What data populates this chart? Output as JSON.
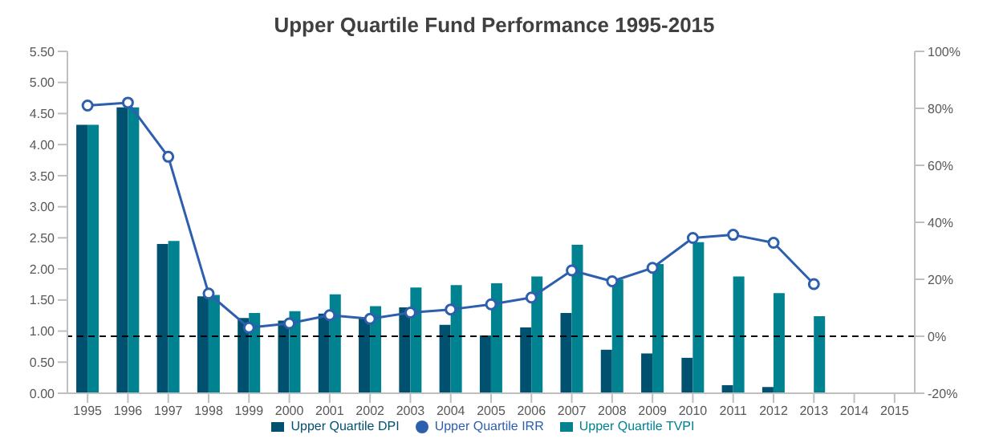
{
  "chart_data": {
    "type": "bar",
    "title": "Upper Quartile Fund Performance 1995-2015",
    "categories": [
      "1995",
      "1996",
      "1997",
      "1998",
      "1999",
      "2000",
      "2001",
      "2002",
      "2003",
      "2004",
      "2005",
      "2006",
      "2007",
      "2008",
      "2009",
      "2010",
      "2011",
      "2012",
      "2013",
      "2014",
      "2015"
    ],
    "series": [
      {
        "name": "Upper Quartile DPI",
        "color": "#005070",
        "values": [
          4.32,
          4.6,
          2.4,
          1.56,
          1.21,
          1.17,
          1.28,
          1.21,
          1.38,
          1.1,
          0.93,
          1.06,
          1.29,
          0.7,
          0.64,
          0.57,
          0.13,
          0.1,
          null,
          null,
          null
        ]
      },
      {
        "name": "Upper Quartile TVPI",
        "color": "#008290",
        "values": [
          4.32,
          4.6,
          2.45,
          1.58,
          1.29,
          1.32,
          1.59,
          1.4,
          1.7,
          1.74,
          1.77,
          1.88,
          2.39,
          1.83,
          2.08,
          2.43,
          1.88,
          1.61,
          1.24,
          null,
          null
        ]
      },
      {
        "name": "Upper Quartile IRR",
        "type": "line",
        "axis": "y2",
        "color": "#2e5fae",
        "values": [
          81,
          82,
          63,
          15,
          3,
          4.5,
          7.4,
          6.1,
          8.3,
          9.4,
          11.2,
          13.6,
          23.1,
          19.3,
          24,
          34.5,
          35.6,
          32.8,
          18.3,
          null,
          null
        ]
      }
    ],
    "ylim": [
      0,
      5.5
    ],
    "yticks": [
      {
        "value": 0,
        "label": "0.00"
      },
      {
        "value": 0.5,
        "label": "0.50"
      },
      {
        "value": 1,
        "label": "1.00"
      },
      {
        "value": 1.5,
        "label": "1.50"
      },
      {
        "value": 2,
        "label": "2.00"
      },
      {
        "value": 2.5,
        "label": "2.50"
      },
      {
        "value": 3,
        "label": "3.00"
      },
      {
        "value": 3.5,
        "label": "3.50"
      },
      {
        "value": 4,
        "label": "4.00"
      },
      {
        "value": 4.5,
        "label": "4.50"
      },
      {
        "value": 5,
        "label": "5.00"
      },
      {
        "value": 5.5,
        "label": "5.50"
      }
    ],
    "y2lim": [
      -20,
      100
    ],
    "y2ticks": [
      {
        "value": -20,
        "label": "-20%"
      },
      {
        "value": 0,
        "label": "0%"
      },
      {
        "value": 20,
        "label": "20%"
      },
      {
        "value": 40,
        "label": "40%"
      },
      {
        "value": 60,
        "label": "60%"
      },
      {
        "value": 80,
        "label": "80%"
      },
      {
        "value": 100,
        "label": "100%"
      }
    ],
    "ref_lines": [
      {
        "axis": "y2",
        "value": 0,
        "color": "#000000",
        "line_style": "dashed"
      }
    ],
    "marker": "circle",
    "grid": false,
    "legend": "bottom"
  }
}
